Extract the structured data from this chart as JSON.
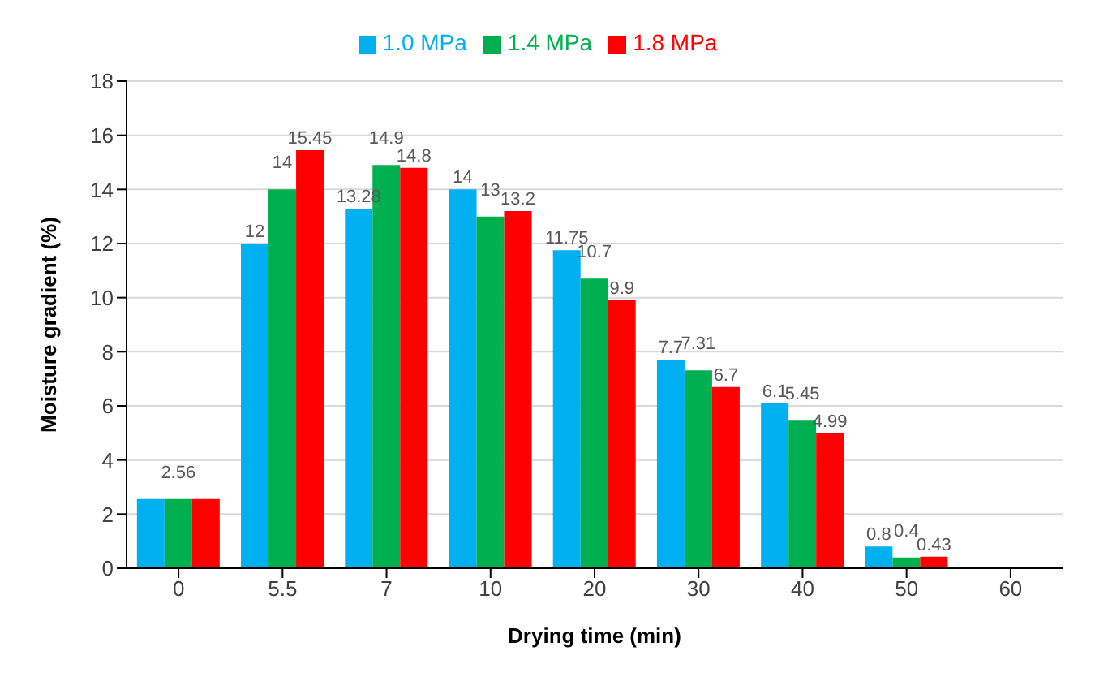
{
  "chart_data": {
    "type": "bar",
    "xlabel": "Drying time (min)",
    "ylabel": "Moisture gradient (%)",
    "categories": [
      "0",
      "5.5",
      "7",
      "10",
      "20",
      "30",
      "40",
      "50",
      "60"
    ],
    "series": [
      {
        "name": "1.0 MPa",
        "color": "#00b0f0",
        "values": [
          2.56,
          12,
          13.28,
          14,
          11.75,
          7.7,
          6.1,
          0.8,
          0
        ],
        "value_labels": [
          null,
          "12",
          "13.28",
          "14",
          "11.75",
          "7.7",
          "6.1",
          "0.8",
          null
        ]
      },
      {
        "name": "1.4 MPa",
        "color": "#00b050",
        "values": [
          2.56,
          14,
          14.9,
          13,
          10.7,
          7.31,
          5.45,
          0.4,
          0
        ],
        "value_labels": [
          "2.56",
          "14",
          "14.9",
          "13",
          "10.7",
          "7.31",
          "5.45",
          "0.4",
          null
        ]
      },
      {
        "name": "1.8 MPa",
        "color": "#ff0000",
        "values": [
          2.56,
          15.45,
          14.8,
          13.2,
          9.9,
          6.7,
          4.99,
          0.43,
          0
        ],
        "value_labels": [
          null,
          "15.45",
          "14.8",
          "13.2",
          "9.9",
          "6.7",
          "4.99",
          "0.43",
          null
        ]
      }
    ],
    "ylim": [
      0,
      18
    ],
    "yticks": [
      0,
      2,
      4,
      6,
      8,
      10,
      12,
      14,
      16,
      18
    ],
    "grid": "y",
    "legend": "top"
  }
}
